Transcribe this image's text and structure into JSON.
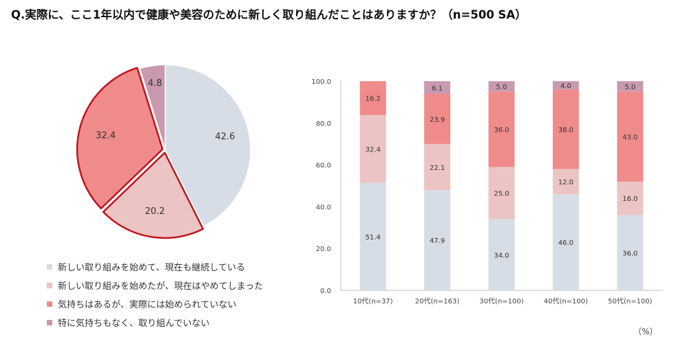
{
  "title": "Q.実際に、ここ1年以内で健康や美容のために新しく取り組んだことはありますか？（n=500 SA）",
  "colors": [
    "#d6dde6",
    "#ecc4c4",
    "#f08b8b",
    "#c99aaf"
  ],
  "highlight_color": "#c0141e",
  "legend": [
    "新しい取り組みを始めて、現在も継続している",
    "新しい取り組みを始めたが、現在はやめてしまった",
    "気持ちはあるが、実際には始められていない",
    "特に気持ちもなく、取り組んでいない"
  ],
  "unit_label": "（%）",
  "chart_data": [
    {
      "type": "pie",
      "labels": [
        "新しい取り組みを始めて、現在も継続している",
        "新しい取り組みを始めたが、現在はやめてしまった",
        "気持ちはあるが、実際には始められていない",
        "特に気持ちもなく、取り組んでいない"
      ],
      "values": [
        42.6,
        20.2,
        32.4,
        4.8
      ],
      "value_labels": [
        "42.6",
        "20.2",
        "32.4",
        "4.8"
      ],
      "highlighted": [
        1,
        2
      ]
    },
    {
      "type": "bar",
      "stacked": true,
      "categories": [
        "10代(n=37)",
        "20代(n=163)",
        "30代(n=100)",
        "40代(n=100)",
        "50代(n=100)"
      ],
      "series": [
        {
          "name": "新しい取り組みを始めて、現在も継続している",
          "values": [
            51.4,
            47.9,
            34.0,
            46.0,
            36.0
          ],
          "labels": [
            "51.4",
            "47.9",
            "34.0",
            "46.0",
            "36.0"
          ]
        },
        {
          "name": "新しい取り組みを始めたが、現在はやめてしまった",
          "values": [
            32.4,
            22.1,
            25.0,
            12.0,
            16.0
          ],
          "labels": [
            "32.4",
            "22.1",
            "25.0",
            "12.0",
            "16.0"
          ]
        },
        {
          "name": "気持ちはあるが、実際には始められていない",
          "values": [
            16.2,
            23.9,
            36.0,
            38.0,
            43.0
          ],
          "labels": [
            "16.2",
            "23.9",
            "36.0",
            "38.0",
            "43.0"
          ]
        },
        {
          "name": "特に気持ちもなく、取り組んでいない",
          "values": [
            0.0,
            6.1,
            5.0,
            4.0,
            5.0
          ],
          "labels": [
            "",
            "6.1",
            "5.0",
            "4.0",
            "5.0"
          ]
        }
      ],
      "ylim": [
        0,
        100
      ],
      "yticks": [
        "0.0",
        "20.0",
        "40.0",
        "60.0",
        "80.0",
        "100.0"
      ],
      "ytick_values": [
        0,
        20,
        40,
        60,
        80,
        100
      ],
      "gridlines": false
    }
  ]
}
